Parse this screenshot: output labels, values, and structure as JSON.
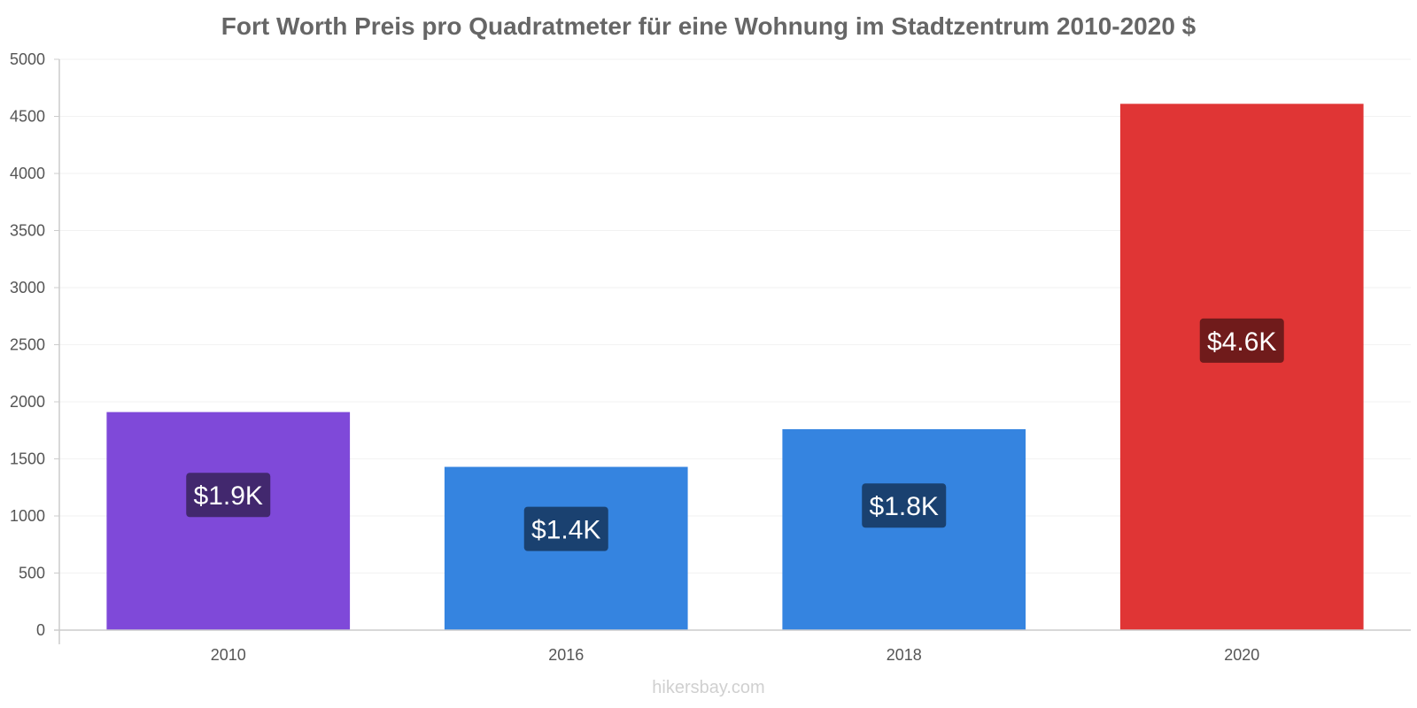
{
  "chart_data": {
    "type": "bar",
    "title": "Fort Worth Preis pro Quadratmeter für eine Wohnung im Stadtzentrum 2010-2020 $",
    "xlabel": "",
    "ylabel": "",
    "categories": [
      "2010",
      "2016",
      "2018",
      "2020"
    ],
    "values": [
      1910,
      1430,
      1760,
      4610
    ],
    "data_labels": [
      "$1.9K",
      "$1.4K",
      "$1.8K",
      "$4.6K"
    ],
    "bar_colors": [
      "#7f49d9",
      "#3584e0",
      "#3584e0",
      "#e03535"
    ],
    "label_box_colors": [
      "#42286e",
      "#1a4170",
      "#1a4170",
      "#701b1b"
    ],
    "ylim": [
      0,
      5000
    ],
    "yticks": [
      0,
      500,
      1000,
      1500,
      2000,
      2500,
      3000,
      3500,
      4000,
      4500,
      5000
    ],
    "grid": true,
    "legend": "none"
  },
  "watermark": "hikersbay.com"
}
